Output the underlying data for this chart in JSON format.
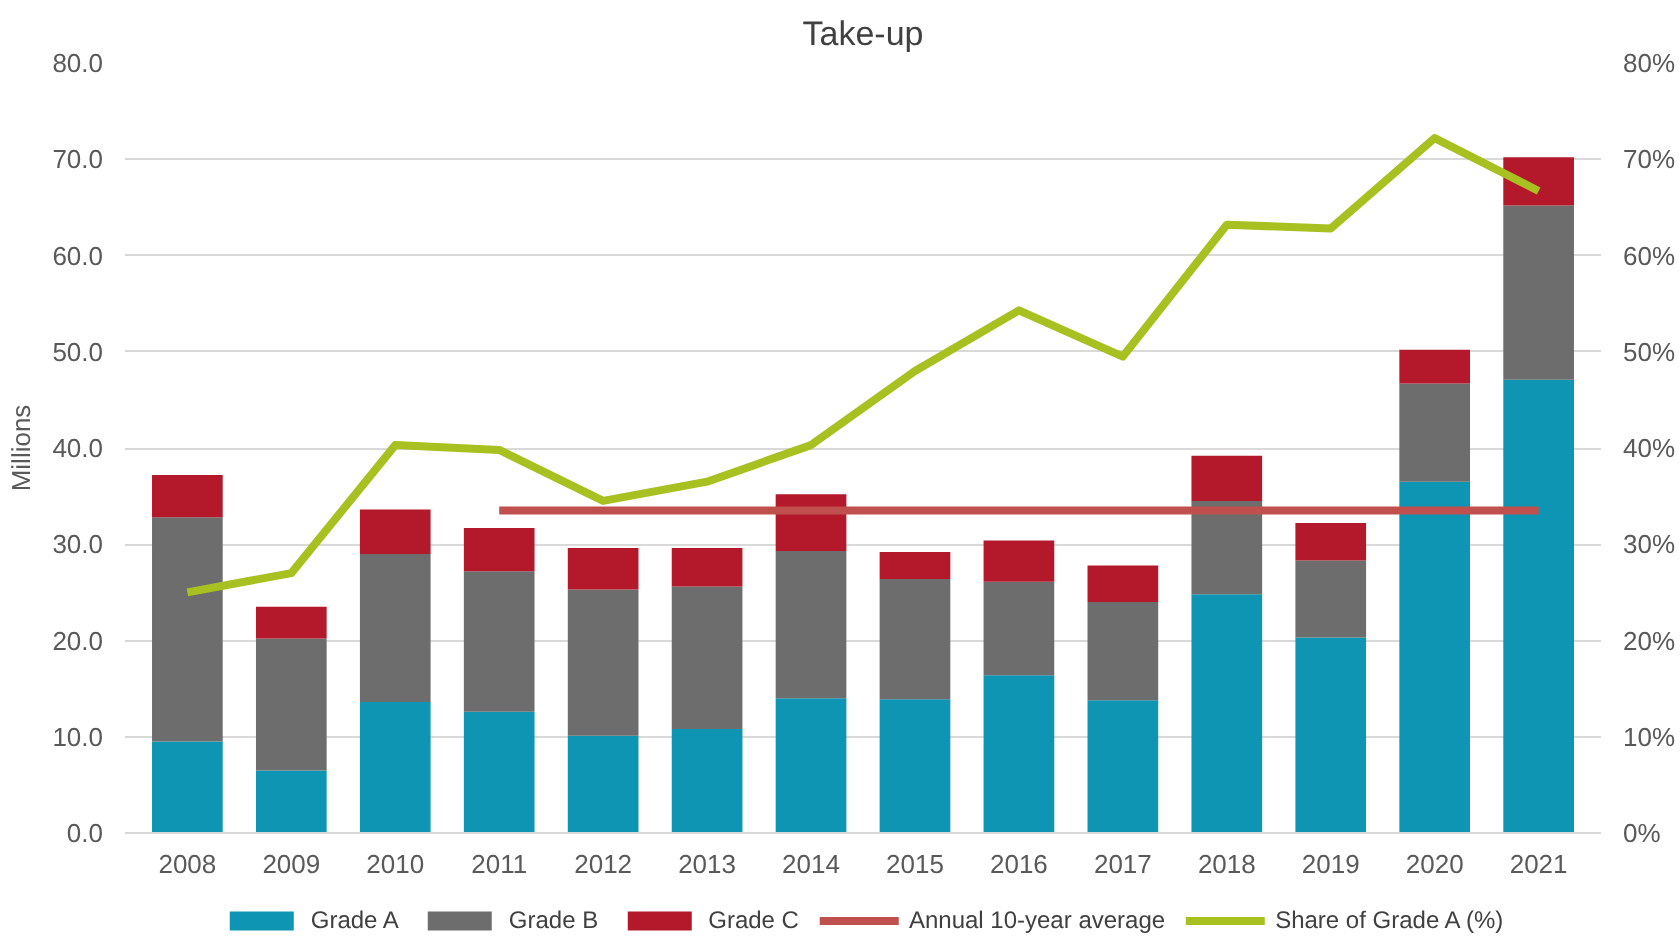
{
  "chart_data": {
    "type": "bar",
    "title": "Take-up",
    "ylabel": "Millions",
    "stacked": true,
    "categories": [
      "2008",
      "2009",
      "2010",
      "2011",
      "2012",
      "2013",
      "2014",
      "2015",
      "2016",
      "2017",
      "2018",
      "2019",
      "2020",
      "2021"
    ],
    "series": [
      {
        "name": "Grade A",
        "color": "#0e95b4",
        "values": [
          9.5,
          6.5,
          13.6,
          12.6,
          10.1,
          10.8,
          14.0,
          13.9,
          16.4,
          13.8,
          24.8,
          20.3,
          36.5,
          47.1
        ]
      },
      {
        "name": "Grade B",
        "color": "#6d6d6d",
        "values": [
          23.3,
          13.7,
          15.4,
          14.6,
          15.2,
          14.8,
          15.3,
          12.5,
          9.7,
          10.2,
          9.7,
          8.0,
          10.2,
          18.1
        ]
      },
      {
        "name": "Grade C",
        "color": "#b3182b",
        "values": [
          4.4,
          3.3,
          4.6,
          4.5,
          4.3,
          4.0,
          5.9,
          2.8,
          4.3,
          3.8,
          4.7,
          3.9,
          3.5,
          5.0
        ]
      },
      {
        "name": "Annual 10-year average",
        "type": "line",
        "color": "#c0504d",
        "values": [
          null,
          null,
          null,
          33.5,
          33.5,
          33.5,
          33.5,
          33.5,
          33.5,
          33.5,
          33.5,
          33.5,
          33.5,
          33.5
        ]
      },
      {
        "name": "Share of Grade A (%)",
        "type": "line",
        "axis": "y2",
        "color": "#a8c020",
        "values": [
          25,
          27,
          40.3,
          39.8,
          34.5,
          36.5,
          40.3,
          48,
          54.3,
          49.5,
          63.2,
          62.8,
          72.2,
          66.7
        ]
      }
    ],
    "ylim": [
      0,
      80
    ],
    "yticks": [
      {
        "value": 0,
        "label": "0.0"
      },
      {
        "value": 10,
        "label": "10.0"
      },
      {
        "value": 20,
        "label": "20.0"
      },
      {
        "value": 30,
        "label": "30.0"
      },
      {
        "value": 40,
        "label": "40.0"
      },
      {
        "value": 50,
        "label": "50.0"
      },
      {
        "value": 60,
        "label": "60.0"
      },
      {
        "value": 70,
        "label": "70.0"
      },
      {
        "value": 80,
        "label": "80.0"
      }
    ],
    "y2lim": [
      0,
      80
    ],
    "y2ticks": [
      {
        "value": 0,
        "label": "0%"
      },
      {
        "value": 10,
        "label": "10%"
      },
      {
        "value": 20,
        "label": "20%"
      },
      {
        "value": 30,
        "label": "30%"
      },
      {
        "value": 40,
        "label": "40%"
      },
      {
        "value": 50,
        "label": "50%"
      },
      {
        "value": 60,
        "label": "60%"
      },
      {
        "value": 70,
        "label": "70%"
      },
      {
        "value": 80,
        "label": "80%"
      }
    ],
    "grid": "y",
    "legend": "bottom"
  }
}
